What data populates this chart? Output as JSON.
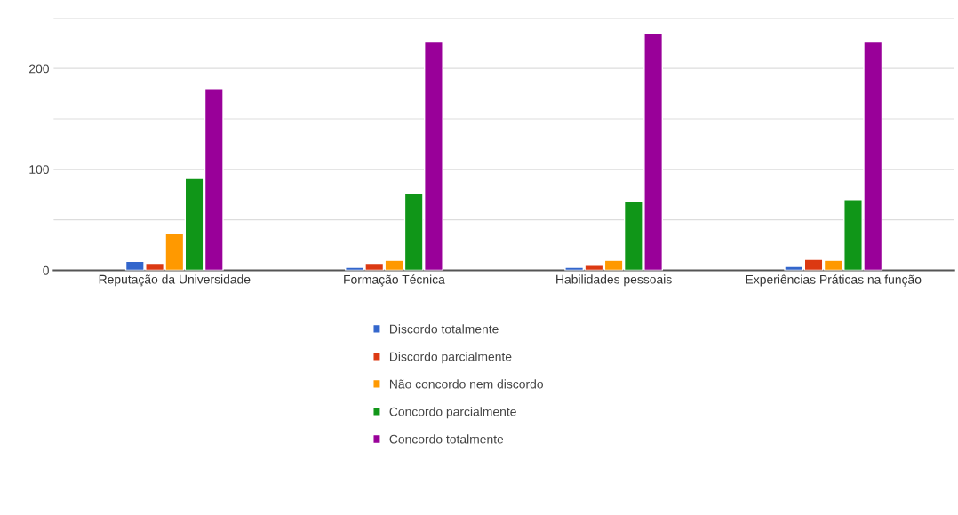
{
  "chart_data": {
    "type": "bar",
    "categories": [
      "Reputação da Universidade",
      "Formação Técnica",
      "Habilidades pessoais",
      "Experiências Práticas na função"
    ],
    "series": [
      {
        "name": "Discordo totalmente",
        "color": "#3366cc",
        "values": [
          9,
          3,
          3,
          4
        ]
      },
      {
        "name": "Discordo parcialmente",
        "color": "#dc3912",
        "values": [
          7,
          7,
          5,
          11
        ]
      },
      {
        "name": "Não concordo nem discordo",
        "color": "#ff9900",
        "values": [
          37,
          10,
          10,
          10
        ]
      },
      {
        "name": "Concordo parcialmente",
        "color": "#109618",
        "values": [
          91,
          76,
          68,
          70
        ]
      },
      {
        "name": "Concordo totalmente",
        "color": "#990099",
        "values": [
          180,
          227,
          235,
          227
        ]
      }
    ],
    "ylim": [
      0,
      250
    ],
    "yticks": [
      0,
      {
        "value": 50,
        "label": null
      },
      100,
      {
        "value": 150,
        "label": null
      },
      200,
      {
        "value": 250,
        "label": null
      }
    ],
    "grid": "y",
    "legend": "bottom"
  }
}
